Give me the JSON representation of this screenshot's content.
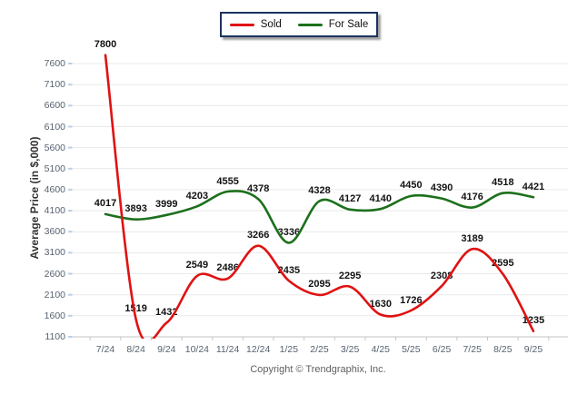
{
  "footer": "Copyright © Trendgraphix, Inc.",
  "colors": {
    "sold": "#e01212",
    "for_sale": "#1c701c",
    "gridline": "#e9e9e9",
    "axis_line": "#c6c6c6",
    "y_axis_tick": "#b9cfe8",
    "tick_text": "#566270",
    "data_label": "#121212",
    "legend_border": "#1b3260"
  },
  "chart_data": {
    "type": "line",
    "title": "",
    "xlabel": "",
    "ylabel": "Average Price (in $,000)",
    "categories": [
      "7/24",
      "8/24",
      "9/24",
      "10/24",
      "11/24",
      "12/24",
      "1/25",
      "2/25",
      "3/25",
      "4/25",
      "5/25",
      "6/25",
      "7/25",
      "8/25",
      "9/25"
    ],
    "series": [
      {
        "name": "Sold",
        "color": "#e01212",
        "values": [
          7800,
          1519,
          1432,
          2549,
          2486,
          3266,
          2435,
          2095,
          2295,
          1630,
          1726,
          2308,
          3189,
          2595,
          1235
        ]
      },
      {
        "name": "For Sale",
        "color": "#1c701c",
        "values": [
          4017,
          3893,
          3999,
          4203,
          4555,
          4378,
          3336,
          4328,
          4127,
          4140,
          4450,
          4390,
          4176,
          4518,
          4421
        ]
      }
    ],
    "y_ticks": [
      1100,
      1600,
      2100,
      2600,
      3100,
      3600,
      4100,
      4600,
      5100,
      5600,
      6100,
      6600,
      7100,
      7600
    ],
    "ylim": [
      1100,
      7600
    ],
    "grid": true,
    "smooth": true,
    "data_labels": true,
    "legend_position": "top-center"
  }
}
